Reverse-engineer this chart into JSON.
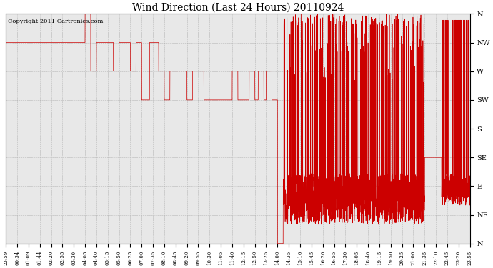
{
  "title": "Wind Direction (Last 24 Hours) 20110924",
  "copyright_text": "Copyright 2011 Cartronics.com",
  "background_color": "#e8e8e8",
  "line_color": "#cc0000",
  "grid_color": "#aaaaaa",
  "y_labels": [
    "N",
    "NW",
    "W",
    "SW",
    "S",
    "SE",
    "E",
    "NE",
    "N"
  ],
  "y_values": [
    360,
    315,
    270,
    225,
    180,
    135,
    90,
    45,
    0
  ],
  "ylim": [
    0,
    360
  ],
  "x_ticks_labels": [
    "23:59",
    "00:34",
    "01:09",
    "01:44",
    "02:20",
    "02:55",
    "03:30",
    "04:05",
    "04:40",
    "05:15",
    "05:50",
    "06:25",
    "07:00",
    "07:35",
    "08:10",
    "08:45",
    "09:20",
    "09:55",
    "10:30",
    "11:05",
    "11:40",
    "12:15",
    "12:50",
    "13:25",
    "14:00",
    "14:35",
    "15:10",
    "15:45",
    "16:20",
    "16:55",
    "17:30",
    "18:05",
    "18:40",
    "19:15",
    "19:50",
    "20:25",
    "21:00",
    "21:35",
    "22:10",
    "22:45",
    "23:20",
    "23:55"
  ],
  "n_labels": 42,
  "figsize": [
    6.9,
    3.75
  ],
  "dpi": 100
}
